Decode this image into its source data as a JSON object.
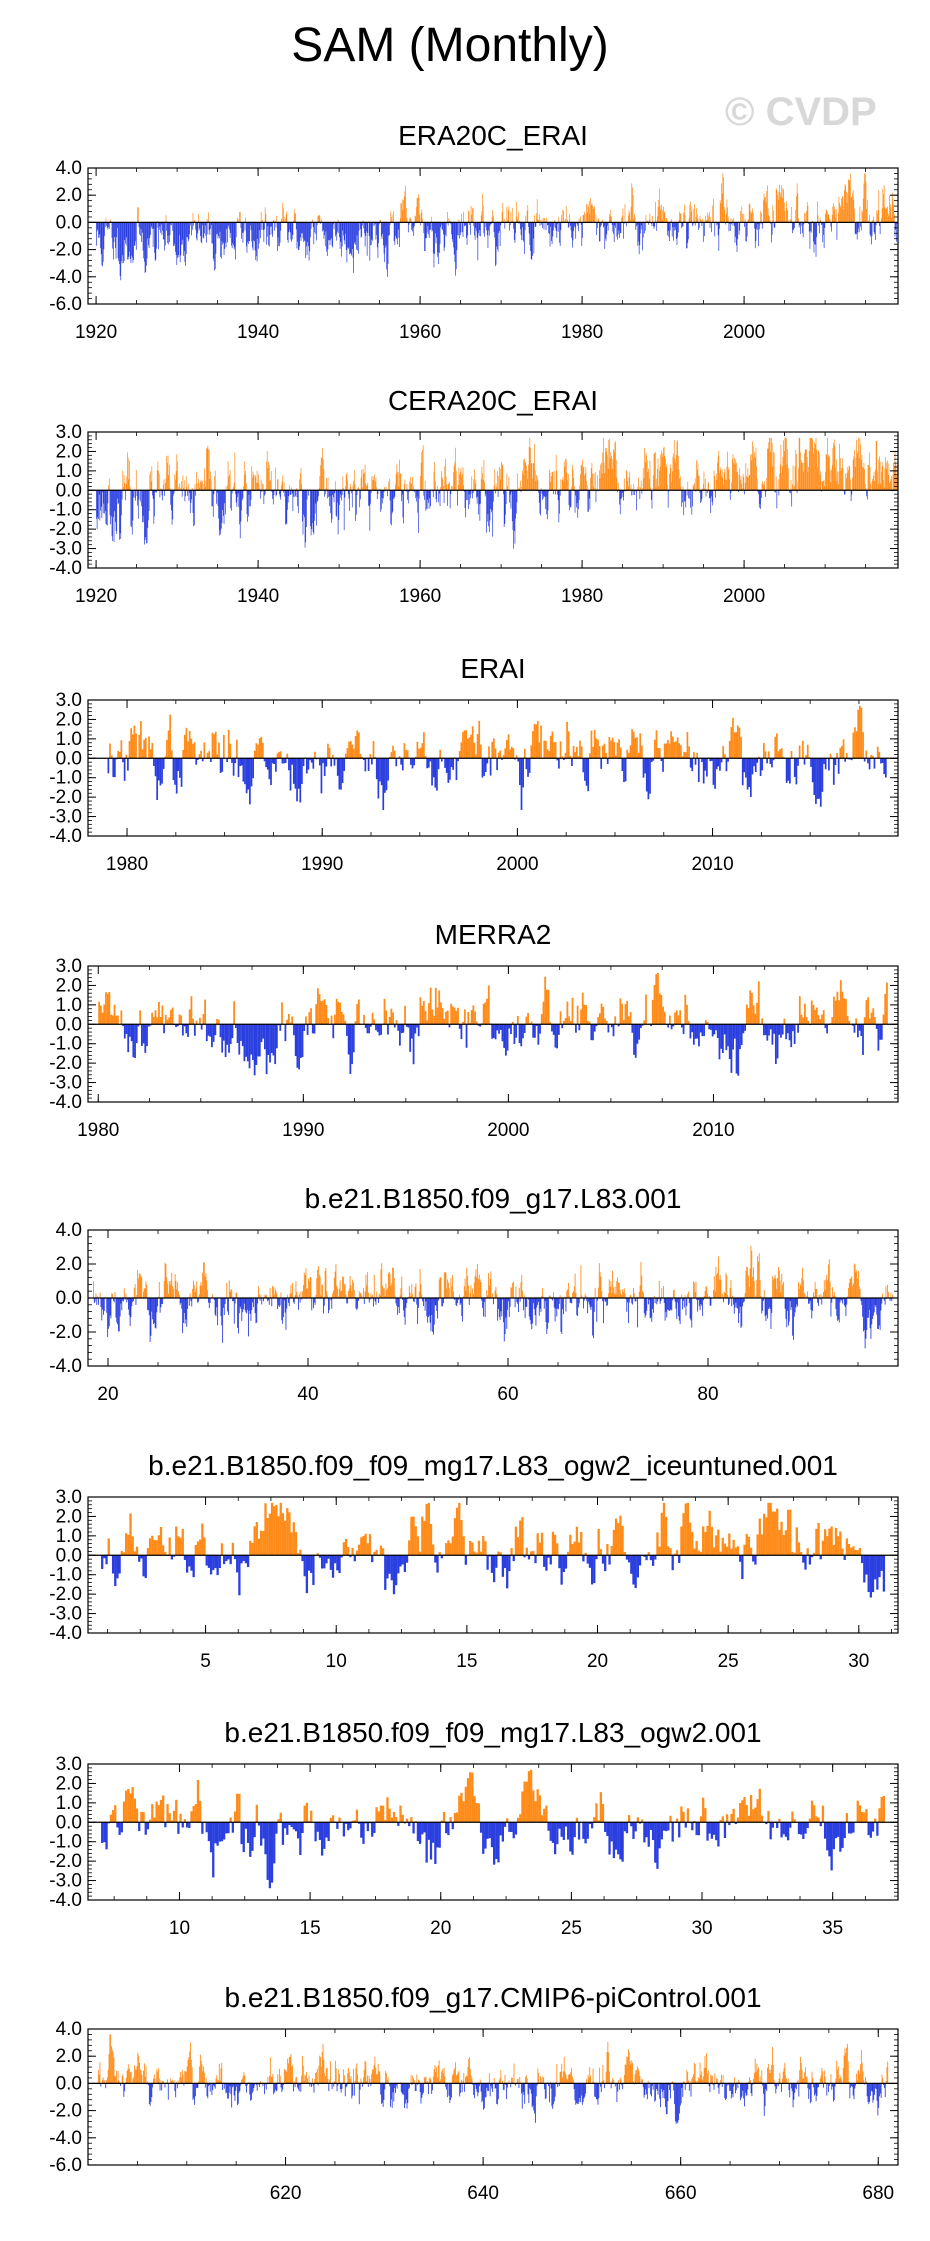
{
  "title": "SAM (Monthly)",
  "watermark": "© CVDP",
  "colors": {
    "positive": "#ff8c1a",
    "negative": "#2b3fe0",
    "axis": "#000000"
  },
  "chart_data": [
    {
      "type": "bar",
      "title": "ERA20C_ERAI",
      "ylim": [
        -6,
        4
      ],
      "yticks": [
        4,
        2,
        0,
        -2,
        -4,
        -6
      ],
      "ytick_labels": [
        "4.0",
        "2.0",
        "0.0",
        "-2.0",
        "-4.0",
        "-6.0"
      ],
      "xlim": [
        1919,
        2019
      ],
      "xticks": [
        1920,
        1940,
        1960,
        1980,
        2000
      ],
      "xtick_labels": [
        "1920",
        "1940",
        "1960",
        "1980",
        "2000"
      ],
      "data_start": 1920,
      "data_end": 2018.9,
      "trend": [
        -1.5,
        0.8
      ],
      "amplitude": 1.1,
      "seed": 11
    },
    {
      "type": "bar",
      "title": "CERA20C_ERAI",
      "ylim": [
        -4,
        3
      ],
      "yticks": [
        3,
        2,
        1,
        0,
        -1,
        -2,
        -3,
        -4
      ],
      "ytick_labels": [
        "3.0",
        "2.0",
        "1.0",
        "0.0",
        "-1.0",
        "-2.0",
        "-3.0",
        "-4.0"
      ],
      "xlim": [
        1919,
        2019
      ],
      "xticks": [
        1920,
        1940,
        1960,
        1980,
        2000
      ],
      "xtick_labels": [
        "1920",
        "1940",
        "1960",
        "1980",
        "2000"
      ],
      "data_start": 1920,
      "data_end": 2018.9,
      "trend": [
        -0.7,
        0.9
      ],
      "amplitude": 1.0,
      "seed": 23
    },
    {
      "type": "bar",
      "title": "ERAI",
      "ylim": [
        -4,
        3
      ],
      "yticks": [
        3,
        2,
        1,
        0,
        -1,
        -2,
        -3,
        -4
      ],
      "ytick_labels": [
        "3.0",
        "2.0",
        "1.0",
        "0.0",
        "-1.0",
        "-2.0",
        "-3.0",
        "-4.0"
      ],
      "xlim": [
        1978,
        2019.5
      ],
      "xticks": [
        1980,
        1990,
        2000,
        2010
      ],
      "xtick_labels": [
        "1980",
        "1990",
        "2000",
        "2010"
      ],
      "data_start": 1979,
      "data_end": 2018.9,
      "trend": [
        0,
        0
      ],
      "amplitude": 1.0,
      "seed": 37
    },
    {
      "type": "bar",
      "title": "MERRA2",
      "ylim": [
        -4,
        3
      ],
      "yticks": [
        3,
        2,
        1,
        0,
        -1,
        -2,
        -3,
        -4
      ],
      "ytick_labels": [
        "3.0",
        "2.0",
        "1.0",
        "0.0",
        "-1.0",
        "-2.0",
        "-3.0",
        "-4.0"
      ],
      "xlim": [
        1979.5,
        2019
      ],
      "xticks": [
        1980,
        1990,
        2000,
        2010
      ],
      "xtick_labels": [
        "1980",
        "1990",
        "2000",
        "2010"
      ],
      "data_start": 1980,
      "data_end": 2018.5,
      "trend": [
        0,
        0
      ],
      "amplitude": 1.0,
      "seed": 41
    },
    {
      "type": "bar",
      "title": "b.e21.B1850.f09_g17.L83.001",
      "ylim": [
        -4,
        4
      ],
      "yticks": [
        4,
        2,
        0,
        -2,
        -4
      ],
      "ytick_labels": [
        "4.0",
        "2.0",
        "0.0",
        "-2.0",
        "-4.0"
      ],
      "xlim": [
        18,
        99
      ],
      "xticks": [
        20,
        40,
        60,
        80
      ],
      "xtick_labels": [
        "20",
        "40",
        "60",
        "80"
      ],
      "data_start": 18.5,
      "data_end": 98.5,
      "trend": [
        0,
        0
      ],
      "amplitude": 1.0,
      "seed": 53
    },
    {
      "type": "bar",
      "title": "b.e21.B1850.f09_f09_mg17.L83_ogw2_iceuntuned.001",
      "ylim": [
        -4,
        3
      ],
      "yticks": [
        3,
        2,
        1,
        0,
        -1,
        -2,
        -3,
        -4
      ],
      "ytick_labels": [
        "3.0",
        "2.0",
        "1.0",
        "0.0",
        "-1.0",
        "-2.0",
        "-3.0",
        "-4.0"
      ],
      "xlim": [
        0.5,
        31.5
      ],
      "xticks": [
        5,
        10,
        15,
        20,
        25,
        30
      ],
      "xtick_labels": [
        "5",
        "10",
        "15",
        "20",
        "25",
        "30"
      ],
      "data_start": 1,
      "data_end": 31,
      "trend": [
        0,
        0
      ],
      "amplitude": 1.0,
      "seed": 67
    },
    {
      "type": "bar",
      "title": "b.e21.B1850.f09_f09_mg17.L83_ogw2.001",
      "ylim": [
        -4,
        3
      ],
      "yticks": [
        3,
        2,
        1,
        0,
        -1,
        -2,
        -3,
        -4
      ],
      "ytick_labels": [
        "3.0",
        "2.0",
        "1.0",
        "0.0",
        "-1.0",
        "-2.0",
        "-3.0",
        "-4.0"
      ],
      "xlim": [
        6.5,
        37.5
      ],
      "xticks": [
        10,
        15,
        20,
        25,
        30,
        35
      ],
      "xtick_labels": [
        "10",
        "15",
        "20",
        "25",
        "30",
        "35"
      ],
      "data_start": 7,
      "data_end": 37,
      "trend": [
        0,
        0
      ],
      "amplitude": 1.0,
      "seed": 79
    },
    {
      "type": "bar",
      "title": "b.e21.B1850.f09_g17.CMIP6-piControl.001",
      "ylim": [
        -6,
        4
      ],
      "yticks": [
        4,
        2,
        0,
        -2,
        -4,
        -6
      ],
      "ytick_labels": [
        "4.0",
        "2.0",
        "0.0",
        "-2.0",
        "-4.0",
        "-6.0"
      ],
      "xlim": [
        600,
        682
      ],
      "xticks": [
        620,
        640,
        660,
        680
      ],
      "xtick_labels": [
        "620",
        "640",
        "660",
        "680"
      ],
      "data_start": 601,
      "data_end": 681,
      "trend": [
        0,
        0
      ],
      "amplitude": 1.0,
      "seed": 97
    }
  ]
}
